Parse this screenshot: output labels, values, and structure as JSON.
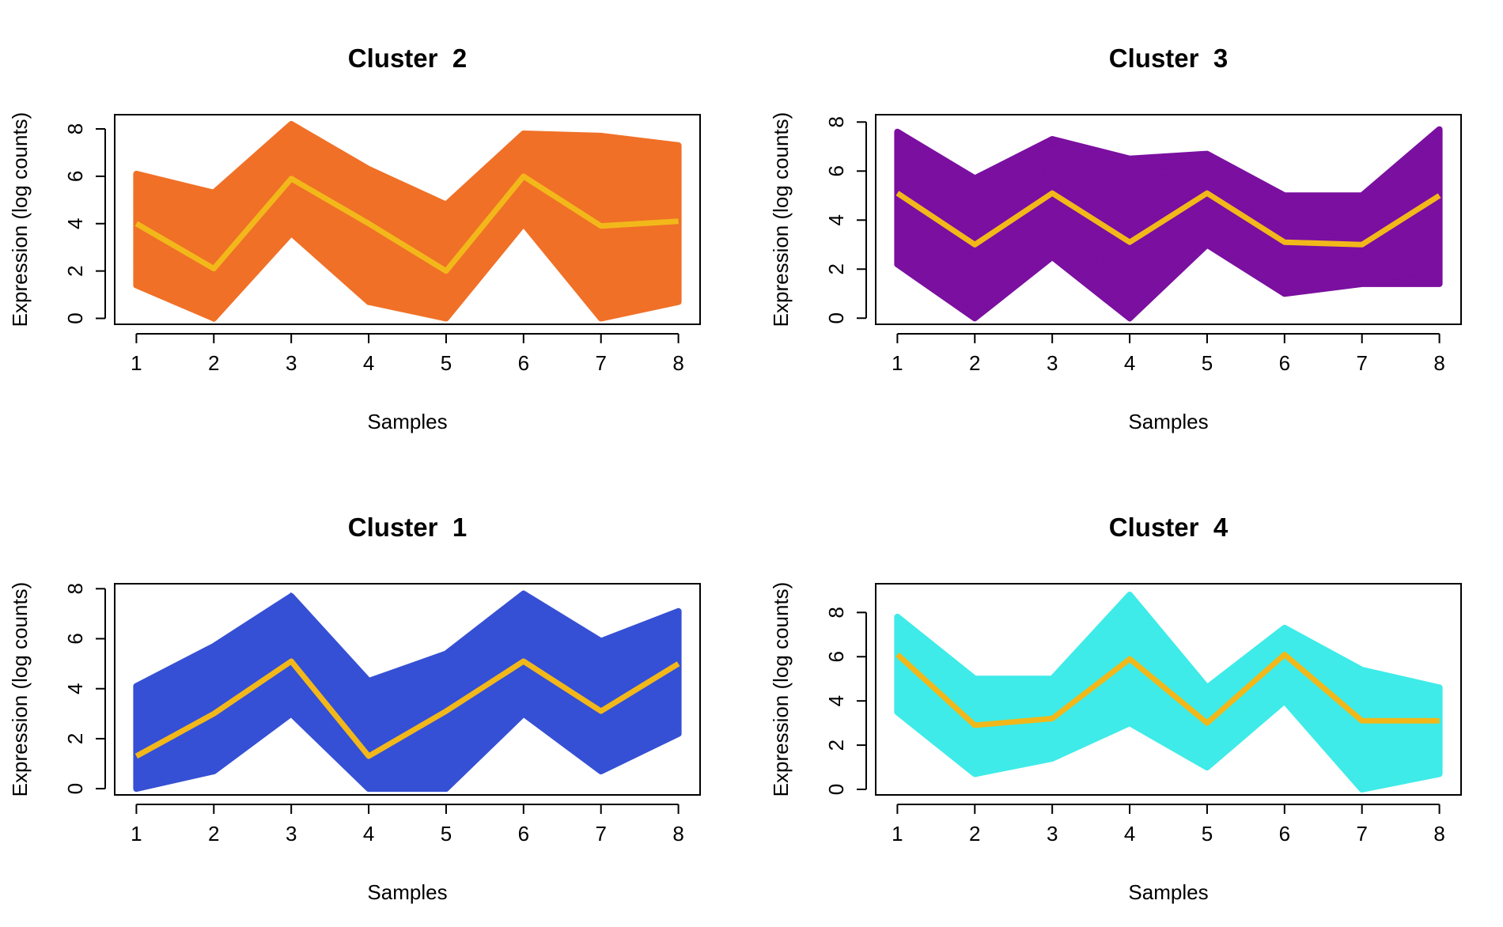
{
  "chart_data": [
    {
      "type": "line",
      "title": "Cluster  2",
      "xlabel": "Samples",
      "ylabel": "Expression (log counts)",
      "x": [
        1,
        2,
        3,
        4,
        5,
        6,
        7,
        8
      ],
      "xlim": [
        0.72,
        8.28
      ],
      "ylim": [
        -0.25,
        8.6
      ],
      "yticks": [
        0,
        2,
        4,
        6,
        8
      ],
      "series_color": "#F07027",
      "centroid_color": "#F2B81A",
      "band_upper": [
        6.1,
        5.3,
        8.2,
        6.3,
        4.8,
        7.8,
        7.7,
        7.3
      ],
      "band_lower": [
        1.4,
        0.0,
        3.6,
        0.7,
        0.0,
        4.0,
        0.0,
        0.7
      ],
      "series": [
        {
          "values": [
            4.0,
            2.1,
            5.9,
            4.0,
            2.0,
            6.0,
            3.9,
            4.1
          ]
        }
      ]
    },
    {
      "type": "line",
      "title": "Cluster  3",
      "xlabel": "Samples",
      "ylabel": "Expression (log counts)",
      "x": [
        1,
        2,
        3,
        4,
        5,
        6,
        7,
        8
      ],
      "xlim": [
        0.72,
        8.28
      ],
      "ylim": [
        -0.25,
        8.3
      ],
      "yticks": [
        0,
        2,
        4,
        6,
        8
      ],
      "series_color": "#7A0FA0",
      "centroid_color": "#F2B81A",
      "band_upper": [
        7.6,
        5.7,
        7.3,
        6.5,
        6.7,
        5.0,
        5.0,
        7.7
      ],
      "band_lower": [
        2.2,
        0.0,
        2.5,
        0.0,
        3.0,
        1.0,
        1.4,
        1.4
      ],
      "series": [
        {
          "values": [
            5.1,
            3.0,
            5.1,
            3.1,
            5.1,
            3.1,
            3.0,
            5.0
          ]
        }
      ]
    },
    {
      "type": "line",
      "title": "Cluster  1",
      "xlabel": "Samples",
      "ylabel": "Expression (log counts)",
      "x": [
        1,
        2,
        3,
        4,
        5,
        6,
        7,
        8
      ],
      "xlim": [
        0.72,
        8.28
      ],
      "ylim": [
        -0.25,
        8.2
      ],
      "yticks": [
        0,
        2,
        4,
        6,
        8
      ],
      "series_color": "#3550D4",
      "centroid_color": "#F2B81A",
      "band_upper": [
        4.1,
        5.7,
        7.7,
        4.3,
        5.4,
        7.8,
        5.9,
        7.1
      ],
      "band_lower": [
        0.0,
        0.7,
        3.0,
        0.0,
        0.0,
        3.0,
        0.7,
        2.2
      ],
      "series": [
        {
          "values": [
            1.3,
            3.0,
            5.1,
            1.3,
            3.1,
            5.1,
            3.1,
            5.0
          ]
        }
      ]
    },
    {
      "type": "line",
      "title": "Cluster  4",
      "xlabel": "Samples",
      "ylabel": "Expression (log counts)",
      "x": [
        1,
        2,
        3,
        4,
        5,
        6,
        7,
        8
      ],
      "xlim": [
        0.72,
        8.28
      ],
      "ylim": [
        -0.25,
        9.3
      ],
      "yticks": [
        0,
        2,
        4,
        6,
        8
      ],
      "series_color": "#3EEBE8",
      "centroid_color": "#F2B81A",
      "band_upper": [
        7.8,
        5.0,
        5.0,
        8.8,
        4.6,
        7.3,
        5.4,
        4.6
      ],
      "band_lower": [
        3.5,
        0.7,
        1.4,
        3.0,
        1.0,
        4.0,
        0.0,
        0.7
      ],
      "series": [
        {
          "values": [
            6.1,
            2.9,
            3.2,
            5.9,
            3.0,
            6.1,
            3.1,
            3.1
          ]
        }
      ]
    }
  ]
}
